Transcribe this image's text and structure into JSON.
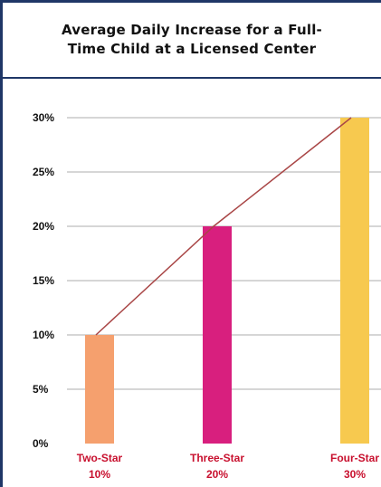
{
  "chart_data": {
    "type": "bar",
    "title": "Average Daily Increase for a Full-Time Child at a Licensed Center",
    "title_lines": [
      "Average Daily Increase for a Full-",
      "Time Child at a Licensed Center"
    ],
    "categories": [
      "Two-Star",
      "Three-Star",
      "Four-Star"
    ],
    "category_value_labels": [
      "10%",
      "20%",
      "30%"
    ],
    "values": [
      10,
      20,
      30
    ],
    "unit": "%",
    "ylim": [
      0,
      30
    ],
    "yticks": [
      0,
      5,
      10,
      15,
      20,
      25,
      30
    ],
    "ytick_labels": [
      "0%",
      "5%",
      "10%",
      "15%",
      "20%",
      "25%",
      "30%"
    ],
    "grid": true,
    "trend_line": true,
    "colors": {
      "bars": [
        "#f5a06e",
        "#d81f7e",
        "#f7c94f"
      ],
      "trend_line": "#a94646",
      "category_labels": "#c8102e",
      "grid": "#c8c8c8",
      "frame": "#1f3767"
    }
  }
}
